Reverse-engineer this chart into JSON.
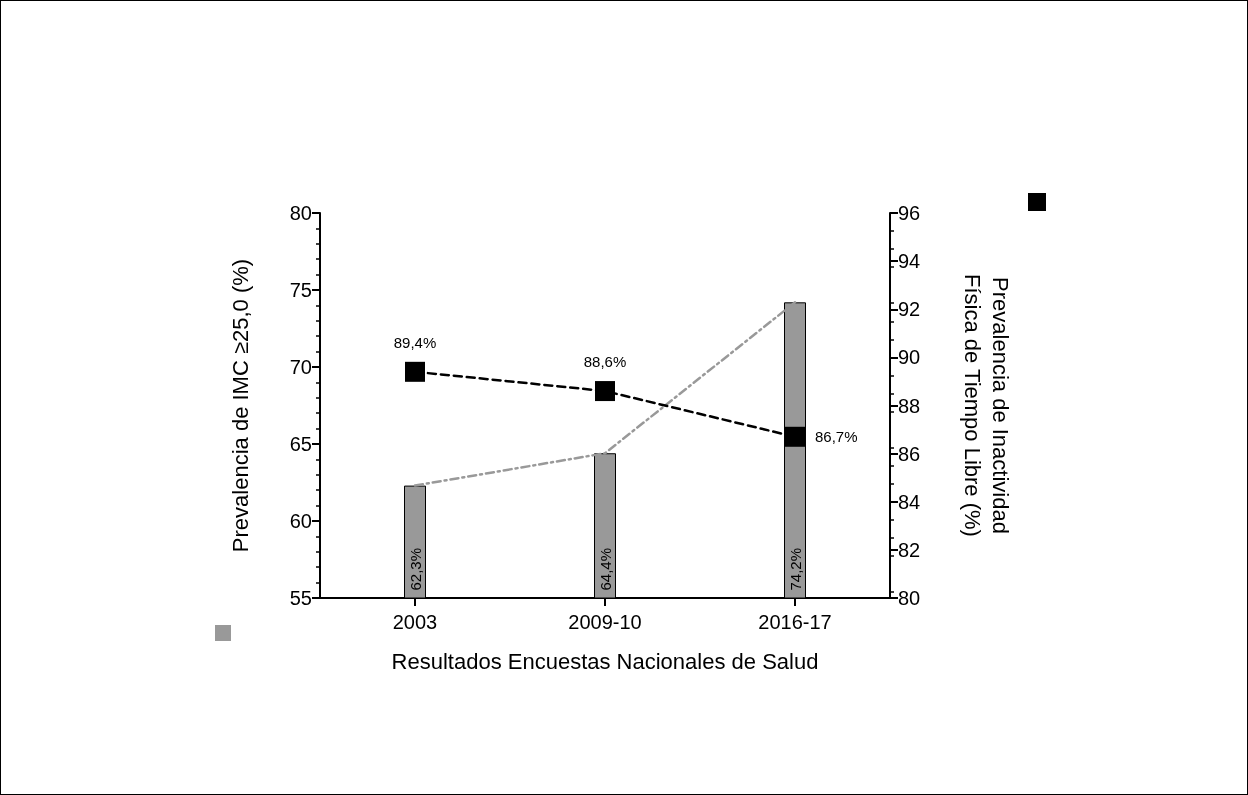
{
  "chart_data": {
    "type": "bar",
    "xlabel": "Resultados Encuestas Nacionales de Salud",
    "ylabel": "Prevalencia de IMC ≥25,0 (%)",
    "y2label": "Prevalencia de Inactividad\nFísica de Tiempo Libre (%)",
    "categories": [
      "2003",
      "2009-10",
      "2016-17"
    ],
    "series": [
      {
        "color": "#999999",
        "values": [
          62.3,
          64.4,
          74.2
        ],
        "value_labels": [
          "62,3%",
          "64,4%",
          "74,2%"
        ]
      },
      {
        "type": "line",
        "color": "#999999",
        "values": [
          62.3,
          64.4,
          74.2
        ],
        "line_style": "dotted",
        "marker": "none"
      },
      {
        "type": "line",
        "axis": "y2",
        "color": "#000000",
        "values": [
          89.4,
          88.6,
          86.7
        ],
        "value_labels": [
          "89,4%",
          "88,6%",
          "86,7%"
        ],
        "line_style": "dashed",
        "marker": "square"
      }
    ],
    "ylim": [
      55,
      80
    ],
    "yticks": [
      55,
      60,
      65,
      70,
      75,
      80
    ],
    "y2lim": [
      80,
      96
    ],
    "y2ticks": [
      80,
      82,
      84,
      86,
      88,
      90,
      92,
      94,
      96
    ],
    "grid": false
  }
}
